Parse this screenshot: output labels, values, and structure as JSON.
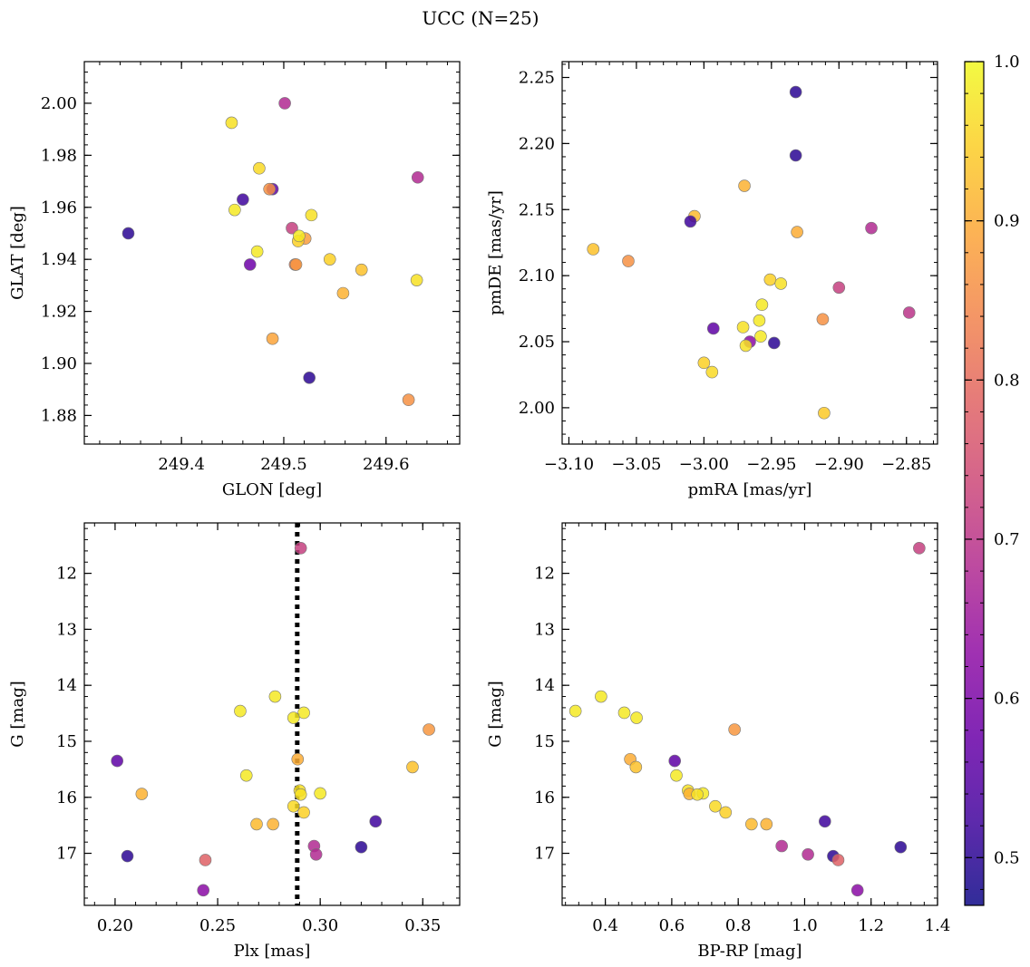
{
  "figure": {
    "title": "UCC (N=25)"
  },
  "colorbar": {
    "colormap": "plasma",
    "range": [
      0.47,
      1.0
    ],
    "ticks": [
      0.5,
      0.6,
      0.7,
      0.8,
      0.9,
      1.0
    ],
    "tick_labels": [
      "0.5",
      "0.6",
      "0.7",
      "0.8",
      "0.9",
      "1.0"
    ]
  },
  "chart_data": [
    {
      "type": "scatter",
      "xlabel": "GLON [deg]",
      "ylabel": "GLAT [deg]",
      "xlim": [
        249.305,
        249.672
      ],
      "ylim": [
        1.869,
        2.016
      ],
      "invert_y": false,
      "xticks": [
        249.4,
        249.5,
        249.6
      ],
      "xtick_labels": [
        "249.4",
        "249.5",
        "249.6"
      ],
      "yticks": [
        1.88,
        1.9,
        1.92,
        1.94,
        1.96,
        1.98,
        2.0
      ],
      "ytick_labels": [
        "1.88",
        "1.90",
        "1.92",
        "1.94",
        "1.96",
        "1.98",
        "2.00"
      ],
      "xminor_step": 0.02,
      "yminor_step": 0.004,
      "points": [
        {
          "x": 249.348,
          "y": 1.95,
          "c": 0.5
        },
        {
          "x": 249.449,
          "y": 1.9925,
          "c": 0.97
        },
        {
          "x": 249.501,
          "y": 2.0,
          "c": 0.68
        },
        {
          "x": 249.476,
          "y": 1.975,
          "c": 0.96
        },
        {
          "x": 249.489,
          "y": 1.967,
          "c": 0.56
        },
        {
          "x": 249.486,
          "y": 1.967,
          "c": 0.86
        },
        {
          "x": 249.46,
          "y": 1.963,
          "c": 0.52
        },
        {
          "x": 249.452,
          "y": 1.959,
          "c": 0.98
        },
        {
          "x": 249.631,
          "y": 1.9715,
          "c": 0.68
        },
        {
          "x": 249.527,
          "y": 1.957,
          "c": 0.97
        },
        {
          "x": 249.508,
          "y": 1.952,
          "c": 0.72
        },
        {
          "x": 249.521,
          "y": 1.948,
          "c": 0.88
        },
        {
          "x": 249.514,
          "y": 1.947,
          "c": 0.95
        },
        {
          "x": 249.515,
          "y": 1.949,
          "c": 0.98
        },
        {
          "x": 249.474,
          "y": 1.943,
          "c": 0.98
        },
        {
          "x": 249.545,
          "y": 1.94,
          "c": 0.95
        },
        {
          "x": 249.467,
          "y": 1.938,
          "c": 0.58
        },
        {
          "x": 249.511,
          "y": 1.938,
          "c": 0.83
        },
        {
          "x": 249.512,
          "y": 1.938,
          "c": 0.87
        },
        {
          "x": 249.576,
          "y": 1.936,
          "c": 0.93
        },
        {
          "x": 249.63,
          "y": 1.932,
          "c": 0.97
        },
        {
          "x": 249.558,
          "y": 1.927,
          "c": 0.91
        },
        {
          "x": 249.489,
          "y": 1.9095,
          "c": 0.89
        },
        {
          "x": 249.525,
          "y": 1.8945,
          "c": 0.5
        },
        {
          "x": 249.622,
          "y": 1.886,
          "c": 0.86
        }
      ]
    },
    {
      "type": "scatter",
      "xlabel": "pmRA [mas/yr]",
      "ylabel": "pmDE [mas/yr]",
      "xlim": [
        -3.105,
        -2.827
      ],
      "ylim": [
        1.9725,
        2.262
      ],
      "invert_y": false,
      "xticks": [
        -3.1,
        -3.05,
        -3.0,
        -2.95,
        -2.9,
        -2.85
      ],
      "xtick_labels": [
        "−3.10",
        "−3.05",
        "−3.00",
        "−2.95",
        "−2.90",
        "−2.85"
      ],
      "yticks": [
        2.0,
        2.05,
        2.1,
        2.15,
        2.2,
        2.25
      ],
      "ytick_labels": [
        "2.00",
        "2.05",
        "2.10",
        "2.15",
        "2.20",
        "2.25"
      ],
      "xminor_step": 0.01,
      "yminor_step": 0.01,
      "points": [
        {
          "x": -2.932,
          "y": 2.239,
          "c": 0.5
        },
        {
          "x": -2.932,
          "y": 2.191,
          "c": 0.5
        },
        {
          "x": -2.97,
          "y": 2.168,
          "c": 0.91
        },
        {
          "x": -3.007,
          "y": 2.145,
          "c": 0.92
        },
        {
          "x": -3.01,
          "y": 2.141,
          "c": 0.52
        },
        {
          "x": -2.876,
          "y": 2.136,
          "c": 0.68
        },
        {
          "x": -2.931,
          "y": 2.133,
          "c": 0.9
        },
        {
          "x": -3.082,
          "y": 2.12,
          "c": 0.93
        },
        {
          "x": -3.056,
          "y": 2.111,
          "c": 0.86
        },
        {
          "x": -2.951,
          "y": 2.097,
          "c": 0.95
        },
        {
          "x": -2.943,
          "y": 2.094,
          "c": 0.97
        },
        {
          "x": -2.9,
          "y": 2.091,
          "c": 0.72
        },
        {
          "x": -2.957,
          "y": 2.078,
          "c": 0.98
        },
        {
          "x": -2.848,
          "y": 2.072,
          "c": 0.7
        },
        {
          "x": -2.912,
          "y": 2.067,
          "c": 0.86
        },
        {
          "x": -2.959,
          "y": 2.066,
          "c": 0.98
        },
        {
          "x": -2.971,
          "y": 2.061,
          "c": 0.97
        },
        {
          "x": -2.993,
          "y": 2.06,
          "c": 0.56
        },
        {
          "x": -2.958,
          "y": 2.054,
          "c": 0.98
        },
        {
          "x": -2.966,
          "y": 2.05,
          "c": 0.62
        },
        {
          "x": -2.948,
          "y": 2.049,
          "c": 0.5
        },
        {
          "x": -2.969,
          "y": 2.047,
          "c": 0.97
        },
        {
          "x": -3.0,
          "y": 2.034,
          "c": 0.95
        },
        {
          "x": -2.994,
          "y": 2.027,
          "c": 0.96
        },
        {
          "x": -2.911,
          "y": 1.996,
          "c": 0.94
        }
      ]
    },
    {
      "type": "scatter",
      "xlabel": "Plx [mas]",
      "ylabel": "G [mag]",
      "xlim": [
        0.185,
        0.368
      ],
      "ylim": [
        11.1,
        17.93
      ],
      "invert_y": true,
      "xticks": [
        0.2,
        0.25,
        0.3,
        0.35
      ],
      "xtick_labels": [
        "0.20",
        "0.25",
        "0.30",
        "0.35"
      ],
      "yticks": [
        12,
        13,
        14,
        15,
        16,
        17
      ],
      "ytick_labels": [
        "12",
        "13",
        "14",
        "15",
        "16",
        "17"
      ],
      "xminor_step": 0.01,
      "yminor_step": 0.2,
      "vline_x": 0.2888,
      "points": [
        {
          "x": 0.2905,
          "y": 11.55,
          "c": 0.72
        },
        {
          "x": 0.278,
          "y": 14.2,
          "c": 0.98
        },
        {
          "x": 0.261,
          "y": 14.46,
          "c": 0.98
        },
        {
          "x": 0.292,
          "y": 14.49,
          "c": 0.98
        },
        {
          "x": 0.287,
          "y": 14.58,
          "c": 0.98
        },
        {
          "x": 0.353,
          "y": 14.79,
          "c": 0.87
        },
        {
          "x": 0.289,
          "y": 15.32,
          "c": 0.9
        },
        {
          "x": 0.201,
          "y": 15.35,
          "c": 0.56
        },
        {
          "x": 0.345,
          "y": 15.46,
          "c": 0.93
        },
        {
          "x": 0.264,
          "y": 15.61,
          "c": 0.98
        },
        {
          "x": 0.29,
          "y": 15.88,
          "c": 0.97
        },
        {
          "x": 0.213,
          "y": 15.94,
          "c": 0.91
        },
        {
          "x": 0.3,
          "y": 15.93,
          "c": 0.98
        },
        {
          "x": 0.2905,
          "y": 15.95,
          "c": 0.97
        },
        {
          "x": 0.287,
          "y": 16.16,
          "c": 0.96
        },
        {
          "x": 0.292,
          "y": 16.27,
          "c": 0.95
        },
        {
          "x": 0.327,
          "y": 16.43,
          "c": 0.52
        },
        {
          "x": 0.269,
          "y": 16.48,
          "c": 0.92
        },
        {
          "x": 0.277,
          "y": 16.48,
          "c": 0.91
        },
        {
          "x": 0.297,
          "y": 16.87,
          "c": 0.68
        },
        {
          "x": 0.32,
          "y": 16.89,
          "c": 0.5
        },
        {
          "x": 0.298,
          "y": 17.02,
          "c": 0.68
        },
        {
          "x": 0.206,
          "y": 17.05,
          "c": 0.5
        },
        {
          "x": 0.244,
          "y": 17.12,
          "c": 0.78
        },
        {
          "x": 0.243,
          "y": 17.66,
          "c": 0.62
        }
      ]
    },
    {
      "type": "scatter",
      "xlabel": "BP-RP [mag]",
      "ylabel": "G [mag]",
      "xlim": [
        0.27,
        1.4
      ],
      "ylim": [
        11.1,
        17.93
      ],
      "invert_y": true,
      "xticks": [
        0.4,
        0.6,
        0.8,
        1.0,
        1.2,
        1.4
      ],
      "xtick_labels": [
        "0.4",
        "0.6",
        "0.8",
        "1.0",
        "1.2",
        "1.4"
      ],
      "yticks": [
        12,
        13,
        14,
        15,
        16,
        17
      ],
      "ytick_labels": [
        "12",
        "13",
        "14",
        "15",
        "16",
        "17"
      ],
      "xminor_step": 0.04,
      "yminor_step": 0.2,
      "points": [
        {
          "x": 1.345,
          "y": 11.55,
          "c": 0.72
        },
        {
          "x": 0.387,
          "y": 14.2,
          "c": 0.98
        },
        {
          "x": 0.31,
          "y": 14.46,
          "c": 0.98
        },
        {
          "x": 0.457,
          "y": 14.49,
          "c": 0.98
        },
        {
          "x": 0.494,
          "y": 14.58,
          "c": 0.98
        },
        {
          "x": 0.789,
          "y": 14.79,
          "c": 0.87
        },
        {
          "x": 0.475,
          "y": 15.32,
          "c": 0.9
        },
        {
          "x": 0.609,
          "y": 15.35,
          "c": 0.56
        },
        {
          "x": 0.492,
          "y": 15.46,
          "c": 0.93
        },
        {
          "x": 0.614,
          "y": 15.61,
          "c": 0.98
        },
        {
          "x": 0.649,
          "y": 15.88,
          "c": 0.97
        },
        {
          "x": 0.653,
          "y": 15.94,
          "c": 0.91
        },
        {
          "x": 0.694,
          "y": 15.93,
          "c": 0.98
        },
        {
          "x": 0.677,
          "y": 15.95,
          "c": 0.97
        },
        {
          "x": 0.731,
          "y": 16.16,
          "c": 0.96
        },
        {
          "x": 0.762,
          "y": 16.27,
          "c": 0.95
        },
        {
          "x": 1.061,
          "y": 16.43,
          "c": 0.52
        },
        {
          "x": 0.84,
          "y": 16.48,
          "c": 0.92
        },
        {
          "x": 0.885,
          "y": 16.48,
          "c": 0.91
        },
        {
          "x": 0.931,
          "y": 16.87,
          "c": 0.68
        },
        {
          "x": 1.289,
          "y": 16.89,
          "c": 0.5
        },
        {
          "x": 1.01,
          "y": 17.02,
          "c": 0.68
        },
        {
          "x": 1.086,
          "y": 17.05,
          "c": 0.5
        },
        {
          "x": 1.101,
          "y": 17.12,
          "c": 0.78
        },
        {
          "x": 1.159,
          "y": 17.66,
          "c": 0.62
        }
      ]
    }
  ]
}
